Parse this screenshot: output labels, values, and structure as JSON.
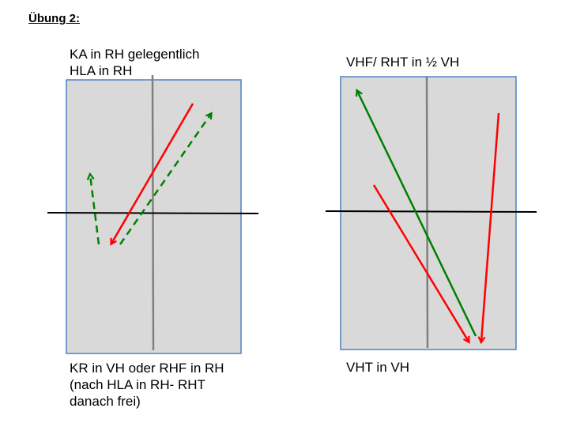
{
  "heading": "Übung 2:",
  "left_panel": {
    "top_label": [
      "KA in RH gelegentlich",
      "HLA in RH"
    ],
    "bottom_label": [
      "KR in VH oder RHF in RH",
      "(nach HLA in RH- RHT",
      "danach frei)"
    ]
  },
  "right_panel": {
    "top_label": "VHF/ RHT in ½ VH",
    "bottom_label": "VHT in VH"
  },
  "colors": {
    "panel_fill": "#d9d9d9",
    "panel_border": "#4f81bd",
    "red_arrow": "#ff0000",
    "green_arrow": "#008000",
    "axis_black": "#000000",
    "axis_gray": "#808080"
  }
}
